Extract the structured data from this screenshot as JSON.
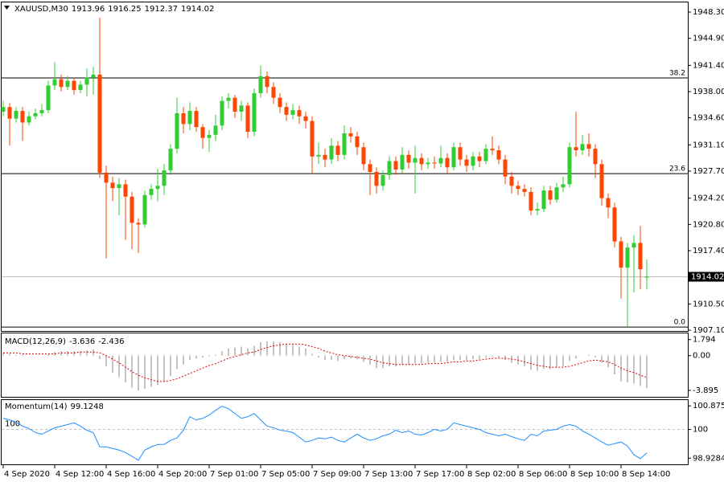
{
  "chart_data": [
    {
      "type": "candlestick",
      "title": "XAUUSD,M30",
      "up_color": "#32cd32",
      "down_color": "#ff4500",
      "categories": [
        "4 Sep 2020",
        null,
        null,
        null,
        null,
        null,
        null,
        null,
        "4 Sep 12:00",
        null,
        null,
        null,
        null,
        null,
        null,
        null,
        "4 Sep 16:00",
        null,
        null,
        null,
        null,
        null,
        null,
        null,
        "4 Sep 20:00",
        null,
        null,
        null,
        null,
        null,
        null,
        null,
        "7 Sep 01:00",
        null,
        null,
        null,
        null,
        null,
        null,
        null,
        "7 Sep 05:00",
        null,
        null,
        null,
        null,
        null,
        null,
        null,
        "7 Sep 09:00",
        null,
        null,
        null,
        null,
        null,
        null,
        null,
        "7 Sep 13:00",
        null,
        null,
        null,
        null,
        null,
        null,
        null,
        "7 Sep 17:00",
        null,
        null,
        null,
        null,
        null,
        null,
        null,
        "8 Sep 02:00",
        null,
        null,
        null,
        null,
        null,
        null,
        null,
        "8 Sep 06:00",
        null,
        null,
        null,
        null,
        null,
        null,
        null,
        "8 Sep 10:00",
        null,
        null,
        null,
        null,
        null,
        null,
        null,
        "8 Sep 14:00",
        null,
        null,
        null,
        null
      ],
      "open": [
        1935.4,
        1936.0,
        1934.5,
        1935.5,
        1934.0,
        1934.8,
        1935.2,
        1935.6,
        1938.8,
        1939.6,
        1938.6,
        1939.4,
        1938.2,
        1938.9,
        1939.8,
        1940.2,
        1927.5,
        1926.2,
        1925.5,
        1926.0,
        1924.4,
        1921.0,
        1920.8,
        1924.6,
        1925.4,
        1925.8,
        1927.8,
        1930.6,
        1935.2,
        1933.8,
        1935.5,
        1933.4,
        1932.0,
        1932.4,
        1933.6,
        1936.8,
        1937.2,
        1935.4,
        1936.2,
        1932.8,
        1937.8,
        1940.0,
        1938.6,
        1937.2,
        1936.0,
        1935.0,
        1935.6,
        1934.8,
        1934.2,
        1929.6,
        1929.8,
        1929.2,
        1931.0,
        1929.8,
        1932.6,
        1932.2,
        1930.8,
        1928.6,
        1927.6,
        1925.8,
        1927.2,
        1929.0,
        1927.9,
        1929.8,
        1928.8,
        1929.4,
        1928.6,
        1928.8,
        1928.7,
        1929.4,
        1928.2,
        1930.8,
        1929.2,
        1928.4,
        1929.6,
        1929.0,
        1930.6,
        1930.4,
        1929.2,
        1927.0,
        1925.8,
        1925.4,
        1925.0,
        1922.6,
        1922.8,
        1925.2,
        1924.0,
        1925.6,
        1926.0,
        1930.8,
        1930.4,
        1931.2,
        1930.6,
        1928.6,
        1924.2,
        1923.0,
        1918.6,
        1915.2,
        1917.8,
        1918.4,
        1913.96
      ],
      "high": [
        1936.8,
        1936.5,
        1936.0,
        1936.0,
        1935.4,
        1935.8,
        1936.4,
        1939.4,
        1941.8,
        1940.2,
        1940.0,
        1939.8,
        1939.4,
        1941.0,
        1941.2,
        1947.6,
        1928.4,
        1927.0,
        1926.8,
        1926.6,
        1925.0,
        1921.6,
        1925.2,
        1926.0,
        1928.0,
        1928.6,
        1931.2,
        1937.2,
        1936.0,
        1936.6,
        1936.0,
        1933.8,
        1933.0,
        1935.0,
        1937.4,
        1937.8,
        1937.6,
        1936.8,
        1936.6,
        1938.4,
        1941.4,
        1940.6,
        1939.2,
        1937.8,
        1936.6,
        1936.4,
        1936.2,
        1935.4,
        1934.8,
        1931.4,
        1930.6,
        1932.0,
        1931.6,
        1933.6,
        1933.4,
        1932.8,
        1931.4,
        1929.2,
        1928.2,
        1927.8,
        1929.6,
        1929.6,
        1930.8,
        1930.4,
        1931.0,
        1930.0,
        1929.4,
        1929.6,
        1931.0,
        1930.0,
        1931.4,
        1931.4,
        1929.8,
        1930.2,
        1930.2,
        1931.2,
        1932.2,
        1931.0,
        1929.8,
        1927.6,
        1926.4,
        1926.0,
        1925.6,
        1923.6,
        1925.8,
        1925.8,
        1926.2,
        1927.0,
        1931.4,
        1935.4,
        1932.4,
        1932.6,
        1931.2,
        1929.2,
        1924.8,
        1923.6,
        1919.2,
        1918.4,
        1919.4,
        1920.6,
        1916.25
      ],
      "low": [
        1934.8,
        1931.0,
        1934.0,
        1931.6,
        1933.6,
        1934.4,
        1934.8,
        1935.2,
        1938.2,
        1938.0,
        1938.2,
        1937.6,
        1937.8,
        1937.4,
        1937.6,
        1926.8,
        1916.4,
        1923.8,
        1922.0,
        1918.8,
        1917.6,
        1917.1,
        1920.4,
        1924.0,
        1923.8,
        1924.6,
        1927.2,
        1930.0,
        1932.6,
        1933.0,
        1932.8,
        1930.6,
        1930.2,
        1931.6,
        1933.0,
        1935.8,
        1934.6,
        1934.2,
        1932.0,
        1932.2,
        1937.2,
        1937.8,
        1936.4,
        1935.2,
        1934.2,
        1934.4,
        1933.8,
        1933.2,
        1927.3,
        1928.6,
        1928.2,
        1928.6,
        1929.0,
        1929.2,
        1931.4,
        1929.8,
        1927.8,
        1924.6,
        1924.8,
        1925.2,
        1926.6,
        1927.2,
        1927.4,
        1928.0,
        1924.8,
        1927.8,
        1928.0,
        1928.0,
        1928.2,
        1927.4,
        1927.8,
        1928.4,
        1927.6,
        1927.8,
        1928.2,
        1928.6,
        1929.8,
        1928.6,
        1926.0,
        1924.8,
        1924.6,
        1924.4,
        1922.0,
        1922.0,
        1922.4,
        1923.4,
        1923.6,
        1925.0,
        1925.6,
        1929.6,
        1929.8,
        1929.6,
        1926.8,
        1923.2,
        1921.6,
        1917.8,
        1911.2,
        1907.6,
        1912.0,
        1912.4,
        1912.37
      ],
      "close": [
        1936.0,
        1934.5,
        1935.5,
        1934.0,
        1934.8,
        1935.2,
        1935.6,
        1938.8,
        1939.6,
        1938.6,
        1939.4,
        1938.2,
        1938.9,
        1939.8,
        1940.2,
        1927.5,
        1926.2,
        1925.5,
        1926.0,
        1924.4,
        1921.0,
        1920.8,
        1924.6,
        1925.4,
        1925.8,
        1927.8,
        1930.6,
        1935.2,
        1933.8,
        1935.5,
        1933.4,
        1932.0,
        1932.4,
        1933.6,
        1936.8,
        1937.2,
        1935.4,
        1936.2,
        1932.8,
        1937.8,
        1940.0,
        1938.6,
        1937.2,
        1936.0,
        1935.0,
        1935.6,
        1934.8,
        1934.2,
        1929.6,
        1929.8,
        1929.2,
        1931.0,
        1929.8,
        1932.6,
        1932.2,
        1930.8,
        1928.6,
        1927.6,
        1925.8,
        1927.2,
        1929.0,
        1927.9,
        1929.8,
        1928.8,
        1929.4,
        1928.6,
        1928.8,
        1928.7,
        1929.4,
        1928.2,
        1930.8,
        1929.2,
        1928.4,
        1929.6,
        1929.0,
        1930.6,
        1930.4,
        1929.2,
        1927.0,
        1925.8,
        1925.4,
        1925.0,
        1922.6,
        1922.8,
        1925.2,
        1924.0,
        1925.6,
        1926.0,
        1930.8,
        1930.4,
        1931.2,
        1930.6,
        1928.6,
        1924.2,
        1923.0,
        1918.6,
        1915.2,
        1917.8,
        1918.4,
        1915.0,
        1914.02
      ],
      "fibo_levels": [
        {
          "price": 1939.77,
          "label": "38.2"
        },
        {
          "price": 1927.38,
          "label": "23.6"
        },
        {
          "price": 1907.51,
          "label": "0.0"
        }
      ],
      "ylim": [
        1907.0,
        1949.55
      ],
      "yticks": [
        {
          "value": 1948.3,
          "label": "1948.30"
        },
        {
          "value": 1944.9,
          "label": "1944.90"
        },
        {
          "value": 1941.4,
          "label": "1941.40"
        },
        {
          "value": 1938.0,
          "label": "1938.00"
        },
        {
          "value": 1934.6,
          "label": "1934.60"
        },
        {
          "value": 1931.1,
          "label": "1931.10"
        },
        {
          "value": 1927.7,
          "label": "1927.70"
        },
        {
          "value": 1924.2,
          "label": "1924.20"
        },
        {
          "value": 1920.8,
          "label": "1920.80"
        },
        {
          "value": 1917.4,
          "label": "1917.40"
        },
        {
          "value": 1910.5,
          "label": "1910.50"
        },
        {
          "value": 1907.1,
          "label": "1907.10"
        }
      ]
    },
    {
      "type": "macd",
      "title": "MACD(12,26,9)",
      "histogram_color": "#b0b0b0",
      "signal_color": "#e00000",
      "histogram": [
        0.3,
        0.2,
        0.1,
        0.1,
        0.0,
        0.0,
        0.0,
        0.2,
        0.4,
        0.5,
        0.5,
        0.5,
        0.5,
        0.6,
        0.7,
        -0.4,
        -1.2,
        -1.9,
        -2.4,
        -3.0,
        -3.6,
        -3.9,
        -3.7,
        -3.5,
        -3.3,
        -2.9,
        -2.3,
        -1.5,
        -1.0,
        -0.5,
        -0.3,
        -0.2,
        -0.1,
        0.1,
        0.5,
        0.8,
        0.9,
        1.0,
        0.8,
        1.1,
        1.5,
        1.6,
        1.6,
        1.5,
        1.3,
        1.2,
        1.0,
        0.8,
        0.2,
        -0.2,
        -0.5,
        -0.5,
        -0.6,
        -0.4,
        -0.3,
        -0.4,
        -0.7,
        -1.0,
        -1.4,
        -1.4,
        -1.2,
        -1.2,
        -1.0,
        -1.0,
        -0.9,
        -0.9,
        -0.8,
        -0.8,
        -0.7,
        -0.7,
        -0.5,
        -0.5,
        -0.5,
        -0.4,
        -0.4,
        -0.2,
        -0.1,
        -0.2,
        -0.5,
        -0.8,
        -1.0,
        -1.2,
        -1.6,
        -1.7,
        -1.5,
        -1.5,
        -1.3,
        -1.2,
        -0.6,
        -0.3,
        0.0,
        0.1,
        -0.2,
        -0.8,
        -1.3,
        -2.1,
        -2.9,
        -3.0,
        -3.1,
        -3.4,
        -3.636
      ],
      "signal": [
        0.3,
        0.3,
        0.3,
        0.2,
        0.2,
        0.2,
        0.2,
        0.2,
        0.2,
        0.3,
        0.3,
        0.3,
        0.4,
        0.4,
        0.4,
        0.3,
        0.0,
        -0.4,
        -0.8,
        -1.3,
        -1.8,
        -2.2,
        -2.5,
        -2.7,
        -2.9,
        -2.9,
        -2.8,
        -2.6,
        -2.3,
        -2.0,
        -1.7,
        -1.4,
        -1.1,
        -0.9,
        -0.6,
        -0.3,
        -0.1,
        0.1,
        0.3,
        0.4,
        0.7,
        0.9,
        1.1,
        1.2,
        1.3,
        1.3,
        1.3,
        1.2,
        1.0,
        0.8,
        0.5,
        0.3,
        0.1,
        0.0,
        -0.1,
        -0.2,
        -0.3,
        -0.4,
        -0.6,
        -0.8,
        -0.9,
        -1.0,
        -1.0,
        -1.0,
        -1.0,
        -1.0,
        -0.9,
        -0.9,
        -0.9,
        -0.8,
        -0.7,
        -0.7,
        -0.6,
        -0.6,
        -0.5,
        -0.4,
        -0.3,
        -0.3,
        -0.3,
        -0.4,
        -0.5,
        -0.7,
        -0.9,
        -1.1,
        -1.2,
        -1.3,
        -1.3,
        -1.3,
        -1.2,
        -1.0,
        -0.8,
        -0.6,
        -0.5,
        -0.6,
        -0.7,
        -1.0,
        -1.4,
        -1.7,
        -1.9,
        -2.2,
        -2.436
      ],
      "ylim": [
        -4.62,
        2.49
      ],
      "yticks": [
        1.794,
        {
          "value": 0,
          "label": "0.00"
        },
        -3.895
      ]
    },
    {
      "type": "line",
      "title": "Momentum(14)",
      "color": "#1e90ff",
      "level": 100,
      "values": [
        100.41,
        100.35,
        100.27,
        100.12,
        100.03,
        99.88,
        99.82,
        99.94,
        100.06,
        100.12,
        100.18,
        100.24,
        100.12,
        99.97,
        99.88,
        99.35,
        99.35,
        99.29,
        99.23,
        99.14,
        99.0,
        98.85,
        99.23,
        99.35,
        99.44,
        99.44,
        99.59,
        99.68,
        99.97,
        100.47,
        100.35,
        100.41,
        100.53,
        100.71,
        100.86,
        100.77,
        100.59,
        100.41,
        100.47,
        100.59,
        100.35,
        100.12,
        100.06,
        99.97,
        99.94,
        99.88,
        99.71,
        99.53,
        99.59,
        99.68,
        99.65,
        99.71,
        99.59,
        99.53,
        99.68,
        99.82,
        99.68,
        99.59,
        99.65,
        99.76,
        99.82,
        99.97,
        99.88,
        99.94,
        99.82,
        99.79,
        99.88,
        100.0,
        99.94,
        100.0,
        100.24,
        100.18,
        100.12,
        100.06,
        100.0,
        99.88,
        99.82,
        99.76,
        99.82,
        99.73,
        99.65,
        99.59,
        99.82,
        99.76,
        99.94,
        99.97,
        100.0,
        100.12,
        100.18,
        100.12,
        99.94,
        99.82,
        99.68,
        99.53,
        99.41,
        99.47,
        99.53,
        99.38,
        99.06,
        98.91,
        99.1248
      ],
      "ylim": [
        98.7,
        101.09
      ],
      "yticks": [
        100.8757,
        100,
        98.9284
      ]
    }
  ]
}
